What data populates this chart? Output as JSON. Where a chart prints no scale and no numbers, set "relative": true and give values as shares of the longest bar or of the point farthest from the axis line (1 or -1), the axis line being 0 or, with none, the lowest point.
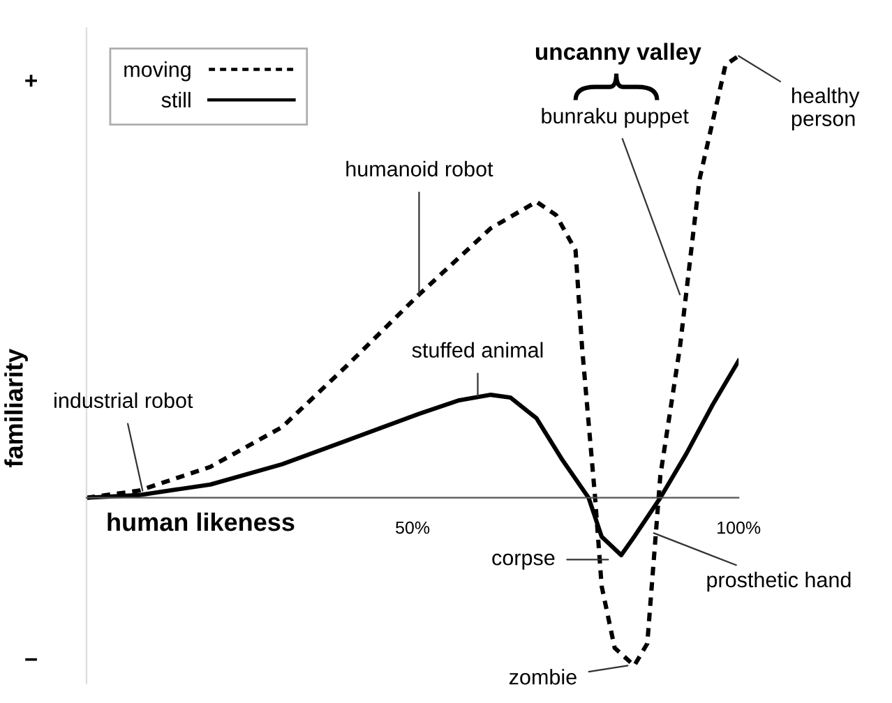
{
  "chart_data": {
    "type": "line",
    "relative": true,
    "xlabel": "human likeness",
    "ylabel": "familiarity",
    "xlim": [
      0,
      100
    ],
    "xticks": [
      {
        "value": 50,
        "label": "50%"
      },
      {
        "value": 100,
        "label": "100%"
      }
    ],
    "tick_labels": "x",
    "legend": "top left",
    "grid": false,
    "series": [
      {
        "name": "moving",
        "color": "#000000",
        "line_style": "dotted",
        "x": [
          0,
          8,
          19,
          30,
          40,
          51,
          62,
          69,
          72,
          75,
          76,
          78,
          79,
          81,
          84,
          86,
          87,
          88,
          91,
          94,
          98,
          100
        ],
        "values": [
          0,
          0.016,
          0.07,
          0.16,
          0.3,
          0.46,
          0.61,
          0.67,
          0.64,
          0.56,
          0.34,
          0,
          -0.2,
          -0.34,
          -0.38,
          -0.33,
          -0.14,
          0.05,
          0.34,
          0.72,
          0.98,
          1.0
        ]
      },
      {
        "name": "still",
        "color": "#000000",
        "line_style": "solid",
        "x": [
          0,
          8,
          19,
          30,
          40,
          51,
          57,
          62,
          65,
          69,
          73,
          77,
          79,
          82,
          84,
          88,
          92,
          96,
          100
        ],
        "values": [
          0,
          0.006,
          0.03,
          0.076,
          0.13,
          0.19,
          0.22,
          0.233,
          0.227,
          0.18,
          0.085,
          0,
          -0.088,
          -0.13,
          -0.088,
          0,
          0.1,
          0.21,
          0.31
        ]
      }
    ],
    "annotations": [
      "uncanny valley",
      "+",
      "−",
      {
        "text": "industrial robot",
        "x": 8.6,
        "y": 0.016
      },
      {
        "text": "humanoid robot",
        "x": 51,
        "y": 0.46
      },
      {
        "text": "stuffed animal",
        "x": 60,
        "y": 0.23
      },
      {
        "text": "bunraku puppet",
        "x": 91,
        "y": 0.46
      },
      {
        "text": "healthy person",
        "x": 100,
        "y": 1.0
      },
      {
        "text": "corpse",
        "x": 80,
        "y": -0.14
      },
      {
        "text": "prosthetic hand",
        "x": 87,
        "y": -0.08
      },
      {
        "text": "zombie",
        "x": 83,
        "y": -0.38
      }
    ]
  }
}
